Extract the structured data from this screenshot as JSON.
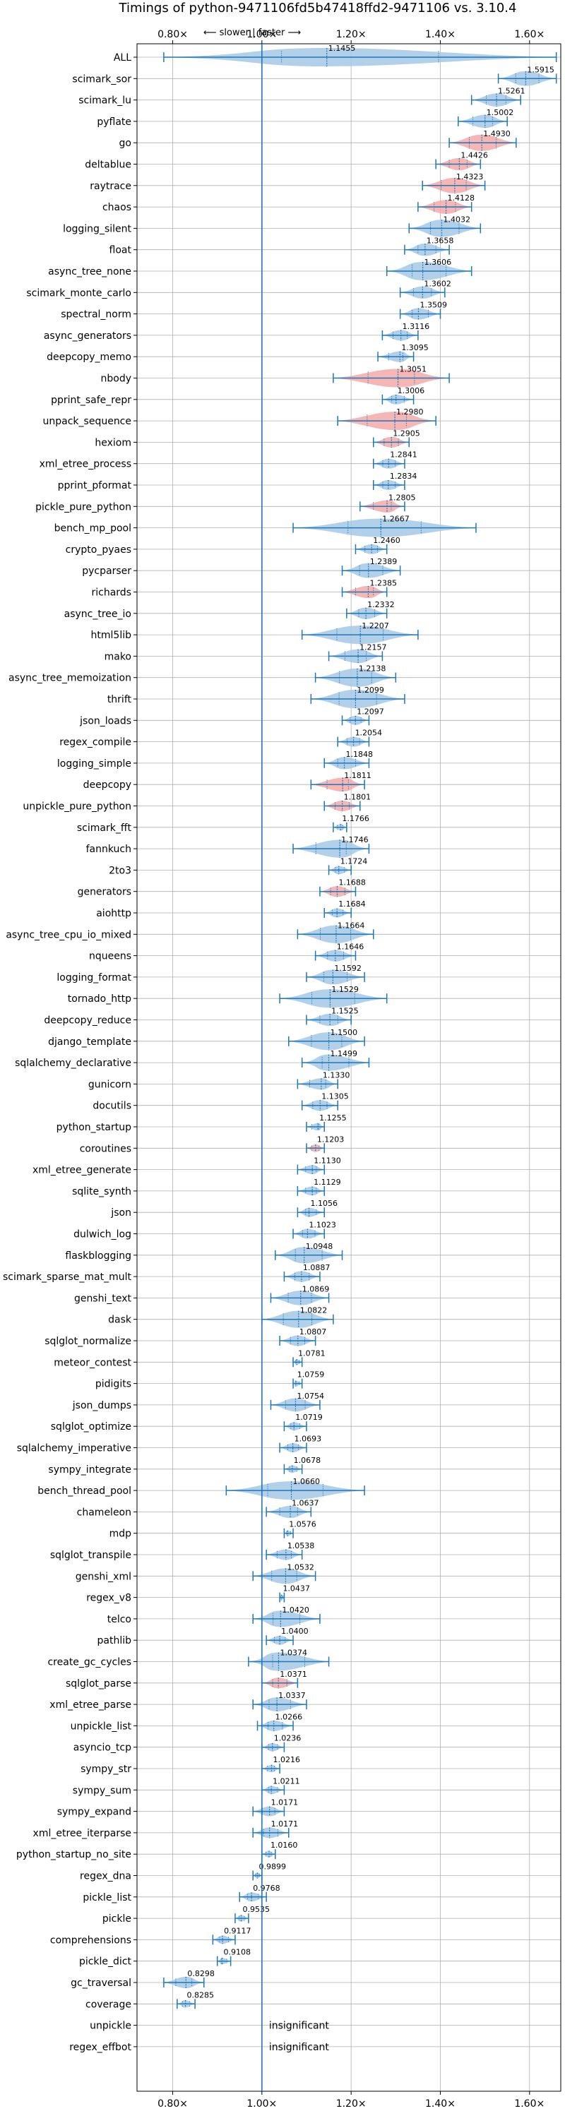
{
  "chart_data": {
    "type": "violin",
    "title": "Timings of python-9471106fd5b47418ffd2-9471106 vs. 3.10.4",
    "xlim": [
      0.72,
      1.67
    ],
    "x_ticks": [
      0.8,
      1.0,
      1.2,
      1.4,
      1.6
    ],
    "x_tick_labels": [
      "0.80×",
      "1.00×",
      "1.20×",
      "1.40×",
      "1.60×"
    ],
    "reference_line": 1.0,
    "annotation": "⟵ slower | faster ⟶",
    "grid": true,
    "colors": {
      "faster": "#a6c8e6",
      "slower": "#f4a9a9",
      "line": "#1f77b4"
    },
    "benchmarks": [
      {
        "name": "ALL",
        "value": 1.1455,
        "lo": 0.78,
        "hi": 1.66,
        "color": "faster"
      },
      {
        "name": "scimark_sor",
        "value": 1.5915,
        "lo": 1.53,
        "hi": 1.66,
        "color": "faster"
      },
      {
        "name": "scimark_lu",
        "value": 1.5261,
        "lo": 1.47,
        "hi": 1.58,
        "color": "faster"
      },
      {
        "name": "pyflate",
        "value": 1.5002,
        "lo": 1.44,
        "hi": 1.55,
        "color": "faster"
      },
      {
        "name": "go",
        "value": 1.493,
        "lo": 1.42,
        "hi": 1.57,
        "color": "slower"
      },
      {
        "name": "deltablue",
        "value": 1.4426,
        "lo": 1.39,
        "hi": 1.49,
        "color": "slower"
      },
      {
        "name": "raytrace",
        "value": 1.4323,
        "lo": 1.36,
        "hi": 1.5,
        "color": "slower"
      },
      {
        "name": "chaos",
        "value": 1.4128,
        "lo": 1.35,
        "hi": 1.47,
        "color": "slower"
      },
      {
        "name": "logging_silent",
        "value": 1.4032,
        "lo": 1.33,
        "hi": 1.49,
        "color": "faster"
      },
      {
        "name": "float",
        "value": 1.3658,
        "lo": 1.32,
        "hi": 1.42,
        "color": "faster"
      },
      {
        "name": "async_tree_none",
        "value": 1.3606,
        "lo": 1.28,
        "hi": 1.47,
        "color": "faster"
      },
      {
        "name": "scimark_monte_carlo",
        "value": 1.3602,
        "lo": 1.31,
        "hi": 1.41,
        "color": "faster"
      },
      {
        "name": "spectral_norm",
        "value": 1.3509,
        "lo": 1.31,
        "hi": 1.4,
        "color": "faster"
      },
      {
        "name": "async_generators",
        "value": 1.3116,
        "lo": 1.27,
        "hi": 1.35,
        "color": "faster"
      },
      {
        "name": "deepcopy_memo",
        "value": 1.3095,
        "lo": 1.26,
        "hi": 1.34,
        "color": "faster"
      },
      {
        "name": "nbody",
        "value": 1.3051,
        "lo": 1.16,
        "hi": 1.42,
        "color": "slower"
      },
      {
        "name": "pprint_safe_repr",
        "value": 1.3006,
        "lo": 1.27,
        "hi": 1.34,
        "color": "faster"
      },
      {
        "name": "unpack_sequence",
        "value": 1.298,
        "lo": 1.17,
        "hi": 1.39,
        "color": "slower"
      },
      {
        "name": "hexiom",
        "value": 1.2905,
        "lo": 1.25,
        "hi": 1.33,
        "color": "slower"
      },
      {
        "name": "xml_etree_process",
        "value": 1.2841,
        "lo": 1.25,
        "hi": 1.32,
        "color": "faster"
      },
      {
        "name": "pprint_pformat",
        "value": 1.2834,
        "lo": 1.25,
        "hi": 1.32,
        "color": "faster"
      },
      {
        "name": "pickle_pure_python",
        "value": 1.2805,
        "lo": 1.22,
        "hi": 1.32,
        "color": "slower"
      },
      {
        "name": "bench_mp_pool",
        "value": 1.2667,
        "lo": 1.07,
        "hi": 1.48,
        "color": "faster"
      },
      {
        "name": "crypto_pyaes",
        "value": 1.246,
        "lo": 1.21,
        "hi": 1.28,
        "color": "faster"
      },
      {
        "name": "pycparser",
        "value": 1.2389,
        "lo": 1.18,
        "hi": 1.31,
        "color": "faster"
      },
      {
        "name": "richards",
        "value": 1.2385,
        "lo": 1.18,
        "hi": 1.28,
        "color": "slower"
      },
      {
        "name": "async_tree_io",
        "value": 1.2332,
        "lo": 1.19,
        "hi": 1.28,
        "color": "faster"
      },
      {
        "name": "html5lib",
        "value": 1.2207,
        "lo": 1.09,
        "hi": 1.35,
        "color": "faster"
      },
      {
        "name": "mako",
        "value": 1.2157,
        "lo": 1.15,
        "hi": 1.27,
        "color": "faster"
      },
      {
        "name": "async_tree_memoization",
        "value": 1.2138,
        "lo": 1.12,
        "hi": 1.3,
        "color": "faster"
      },
      {
        "name": "thrift",
        "value": 1.2099,
        "lo": 1.11,
        "hi": 1.32,
        "color": "faster"
      },
      {
        "name": "json_loads",
        "value": 1.2097,
        "lo": 1.18,
        "hi": 1.24,
        "color": "faster"
      },
      {
        "name": "regex_compile",
        "value": 1.2054,
        "lo": 1.17,
        "hi": 1.24,
        "color": "faster"
      },
      {
        "name": "logging_simple",
        "value": 1.1848,
        "lo": 1.14,
        "hi": 1.24,
        "color": "faster"
      },
      {
        "name": "deepcopy",
        "value": 1.1811,
        "lo": 1.11,
        "hi": 1.23,
        "color": "slower"
      },
      {
        "name": "unpickle_pure_python",
        "value": 1.1801,
        "lo": 1.14,
        "hi": 1.22,
        "color": "slower"
      },
      {
        "name": "scimark_fft",
        "value": 1.1766,
        "lo": 1.16,
        "hi": 1.19,
        "color": "faster"
      },
      {
        "name": "fannkuch",
        "value": 1.1746,
        "lo": 1.07,
        "hi": 1.24,
        "color": "faster"
      },
      {
        "name": "2to3",
        "value": 1.1724,
        "lo": 1.15,
        "hi": 1.2,
        "color": "faster"
      },
      {
        "name": "generators",
        "value": 1.1688,
        "lo": 1.13,
        "hi": 1.21,
        "color": "slower"
      },
      {
        "name": "aiohttp",
        "value": 1.1684,
        "lo": 1.14,
        "hi": 1.2,
        "color": "faster"
      },
      {
        "name": "async_tree_cpu_io_mixed",
        "value": 1.1664,
        "lo": 1.08,
        "hi": 1.25,
        "color": "faster"
      },
      {
        "name": "nqueens",
        "value": 1.1646,
        "lo": 1.12,
        "hi": 1.21,
        "color": "faster"
      },
      {
        "name": "logging_format",
        "value": 1.1592,
        "lo": 1.1,
        "hi": 1.23,
        "color": "faster"
      },
      {
        "name": "tornado_http",
        "value": 1.1529,
        "lo": 1.04,
        "hi": 1.28,
        "color": "faster"
      },
      {
        "name": "deepcopy_reduce",
        "value": 1.1525,
        "lo": 1.1,
        "hi": 1.2,
        "color": "faster"
      },
      {
        "name": "django_template",
        "value": 1.15,
        "lo": 1.06,
        "hi": 1.23,
        "color": "faster"
      },
      {
        "name": "sqlalchemy_declarative",
        "value": 1.1499,
        "lo": 1.09,
        "hi": 1.24,
        "color": "faster"
      },
      {
        "name": "gunicorn",
        "value": 1.133,
        "lo": 1.08,
        "hi": 1.17,
        "color": "faster"
      },
      {
        "name": "docutils",
        "value": 1.1305,
        "lo": 1.09,
        "hi": 1.17,
        "color": "faster"
      },
      {
        "name": "python_startup",
        "value": 1.1255,
        "lo": 1.1,
        "hi": 1.14,
        "color": "faster"
      },
      {
        "name": "coroutines",
        "value": 1.1203,
        "lo": 1.1,
        "hi": 1.14,
        "color": "slower"
      },
      {
        "name": "xml_etree_generate",
        "value": 1.113,
        "lo": 1.08,
        "hi": 1.14,
        "color": "faster"
      },
      {
        "name": "sqlite_synth",
        "value": 1.1129,
        "lo": 1.08,
        "hi": 1.14,
        "color": "faster"
      },
      {
        "name": "json",
        "value": 1.1056,
        "lo": 1.08,
        "hi": 1.14,
        "color": "faster"
      },
      {
        "name": "dulwich_log",
        "value": 1.1023,
        "lo": 1.07,
        "hi": 1.14,
        "color": "faster"
      },
      {
        "name": "flaskblogging",
        "value": 1.0948,
        "lo": 1.03,
        "hi": 1.18,
        "color": "faster"
      },
      {
        "name": "scimark_sparse_mat_mult",
        "value": 1.0887,
        "lo": 1.05,
        "hi": 1.13,
        "color": "faster"
      },
      {
        "name": "genshi_text",
        "value": 1.0869,
        "lo": 1.02,
        "hi": 1.15,
        "color": "faster"
      },
      {
        "name": "dask",
        "value": 1.0822,
        "lo": 1.0,
        "hi": 1.16,
        "color": "faster"
      },
      {
        "name": "sqlglot_normalize",
        "value": 1.0807,
        "lo": 1.04,
        "hi": 1.12,
        "color": "faster"
      },
      {
        "name": "meteor_contest",
        "value": 1.0781,
        "lo": 1.07,
        "hi": 1.09,
        "color": "faster"
      },
      {
        "name": "pidigits",
        "value": 1.0759,
        "lo": 1.07,
        "hi": 1.09,
        "color": "faster"
      },
      {
        "name": "json_dumps",
        "value": 1.0754,
        "lo": 1.02,
        "hi": 1.13,
        "color": "faster"
      },
      {
        "name": "sqlglot_optimize",
        "value": 1.0719,
        "lo": 1.05,
        "hi": 1.1,
        "color": "faster"
      },
      {
        "name": "sqlalchemy_imperative",
        "value": 1.0693,
        "lo": 1.04,
        "hi": 1.1,
        "color": "faster"
      },
      {
        "name": "sympy_integrate",
        "value": 1.0678,
        "lo": 1.05,
        "hi": 1.09,
        "color": "faster"
      },
      {
        "name": "bench_thread_pool",
        "value": 1.066,
        "lo": 0.92,
        "hi": 1.23,
        "color": "faster"
      },
      {
        "name": "chameleon",
        "value": 1.0637,
        "lo": 1.01,
        "hi": 1.11,
        "color": "faster"
      },
      {
        "name": "mdp",
        "value": 1.0576,
        "lo": 1.05,
        "hi": 1.07,
        "color": "faster"
      },
      {
        "name": "sqlglot_transpile",
        "value": 1.0538,
        "lo": 1.01,
        "hi": 1.09,
        "color": "faster"
      },
      {
        "name": "genshi_xml",
        "value": 1.0532,
        "lo": 0.98,
        "hi": 1.12,
        "color": "faster"
      },
      {
        "name": "regex_v8",
        "value": 1.0437,
        "lo": 1.04,
        "hi": 1.05,
        "color": "faster"
      },
      {
        "name": "telco",
        "value": 1.042,
        "lo": 0.98,
        "hi": 1.13,
        "color": "faster"
      },
      {
        "name": "pathlib",
        "value": 1.04,
        "lo": 1.01,
        "hi": 1.07,
        "color": "faster"
      },
      {
        "name": "create_gc_cycles",
        "value": 1.0374,
        "lo": 0.97,
        "hi": 1.15,
        "color": "faster"
      },
      {
        "name": "sqlglot_parse",
        "value": 1.0371,
        "lo": 1.0,
        "hi": 1.08,
        "color": "slower"
      },
      {
        "name": "xml_etree_parse",
        "value": 1.0337,
        "lo": 0.98,
        "hi": 1.1,
        "color": "faster"
      },
      {
        "name": "unpickle_list",
        "value": 1.0266,
        "lo": 0.99,
        "hi": 1.07,
        "color": "faster"
      },
      {
        "name": "asyncio_tcp",
        "value": 1.0236,
        "lo": 1.0,
        "hi": 1.05,
        "color": "faster"
      },
      {
        "name": "sympy_str",
        "value": 1.0216,
        "lo": 1.0,
        "hi": 1.04,
        "color": "faster"
      },
      {
        "name": "sympy_sum",
        "value": 1.0211,
        "lo": 1.0,
        "hi": 1.05,
        "color": "faster"
      },
      {
        "name": "sympy_expand",
        "value": 1.0171,
        "lo": 0.98,
        "hi": 1.05,
        "color": "faster"
      },
      {
        "name": "xml_etree_iterparse",
        "value": 1.0171,
        "lo": 0.98,
        "hi": 1.06,
        "color": "faster"
      },
      {
        "name": "python_startup_no_site",
        "value": 1.016,
        "lo": 1.0,
        "hi": 1.03,
        "color": "faster"
      },
      {
        "name": "regex_dna",
        "value": 0.9899,
        "lo": 0.98,
        "hi": 1.0,
        "color": "faster"
      },
      {
        "name": "pickle_list",
        "value": 0.9768,
        "lo": 0.95,
        "hi": 1.01,
        "color": "faster"
      },
      {
        "name": "pickle",
        "value": 0.9535,
        "lo": 0.94,
        "hi": 0.97,
        "color": "faster"
      },
      {
        "name": "comprehensions",
        "value": 0.9117,
        "lo": 0.89,
        "hi": 0.94,
        "color": "faster"
      },
      {
        "name": "pickle_dict",
        "value": 0.9108,
        "lo": 0.9,
        "hi": 0.93,
        "color": "faster"
      },
      {
        "name": "gc_traversal",
        "value": 0.8298,
        "lo": 0.78,
        "hi": 0.87,
        "color": "faster"
      },
      {
        "name": "coverage",
        "value": 0.8285,
        "lo": 0.81,
        "hi": 0.85,
        "color": "faster"
      },
      {
        "name": "unpickle",
        "value": null,
        "note": "insignificant"
      },
      {
        "name": "regex_effbot",
        "value": null,
        "note": "insignificant"
      }
    ]
  }
}
